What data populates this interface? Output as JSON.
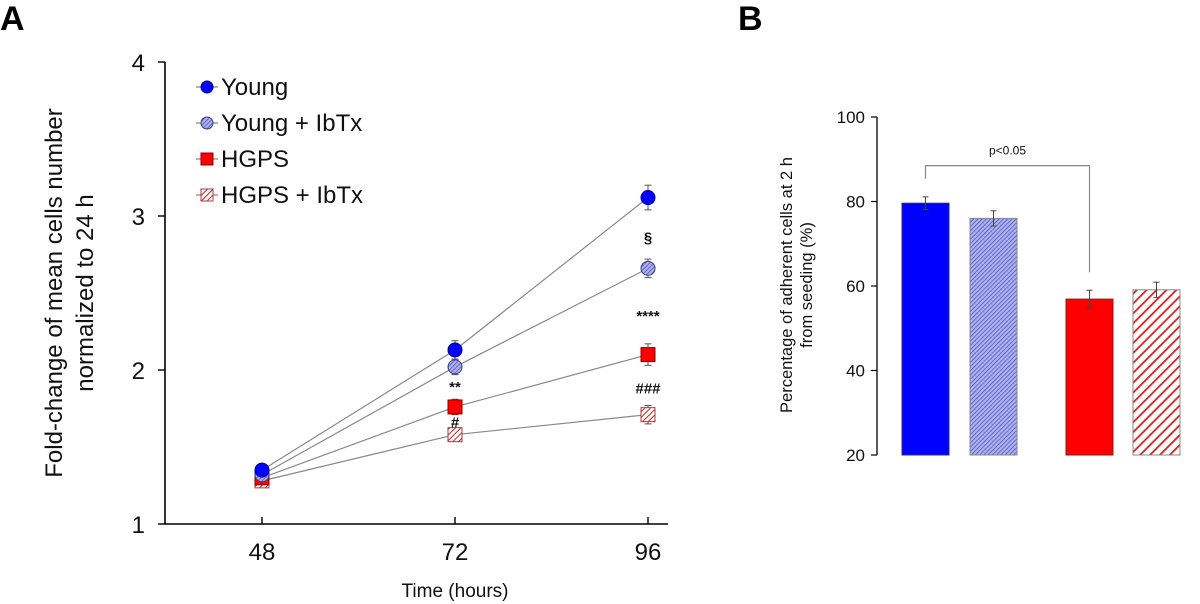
{
  "figure": {
    "panel_labels": [
      "A",
      "B"
    ]
  },
  "chart_data": [
    {
      "type": "line",
      "panel": "A",
      "title": "",
      "xlabel": "Time (hours)",
      "ylabel_lines": [
        "Fold-change of mean cells number",
        "normalized to 24 h"
      ],
      "x": [
        48,
        72,
        96
      ],
      "x_tick_labels": [
        "48",
        "72",
        "96"
      ],
      "ylim": [
        1,
        4
      ],
      "y_ticks": [
        1,
        2,
        3,
        4
      ],
      "y_tick_labels": [
        "1",
        "2",
        "3",
        "4"
      ],
      "grid": false,
      "legend_position": "top-left",
      "series": [
        {
          "name": "Young",
          "marker": "circle",
          "fill": "solid",
          "color": "#0000ff",
          "values": [
            1.35,
            2.13,
            3.12
          ],
          "errors": [
            0.03,
            0.06,
            0.08
          ]
        },
        {
          "name": "Young + IbTx",
          "marker": "circle",
          "fill": "hatched",
          "color": "#8b8fd8",
          "values": [
            1.32,
            2.02,
            2.66
          ],
          "errors": [
            0.03,
            0.05,
            0.06
          ]
        },
        {
          "name": "HGPS",
          "marker": "square",
          "fill": "solid",
          "color": "#ff0000",
          "values": [
            1.3,
            1.76,
            2.1
          ],
          "errors": [
            0.03,
            0.05,
            0.07
          ]
        },
        {
          "name": "HGPS + IbTx",
          "marker": "square",
          "fill": "striped",
          "color": "#e03030",
          "values": [
            1.28,
            1.58,
            1.71
          ],
          "errors": [
            0.03,
            0.04,
            0.06
          ]
        }
      ],
      "annotations": [
        {
          "text": "**",
          "x": 72,
          "y": 1.89
        },
        {
          "text": "#",
          "x": 72,
          "y": 1.66
        },
        {
          "text": "§",
          "x": 96,
          "y": 2.86
        },
        {
          "text": "****",
          "x": 96,
          "y": 2.35
        },
        {
          "text": "###",
          "x": 96,
          "y": 1.88
        }
      ]
    },
    {
      "type": "bar",
      "panel": "B",
      "title": "",
      "xlabel": "",
      "ylabel_lines": [
        "Percentage of adherent cells at 2 h",
        "from seeding (%)"
      ],
      "ylim": [
        20,
        100
      ],
      "y_ticks": [
        20,
        40,
        60,
        80,
        100
      ],
      "y_tick_labels": [
        "20",
        "40",
        "60",
        "80",
        "100"
      ],
      "grid": false,
      "categories": [
        "Young",
        "Young + IbTx",
        "HGPS",
        "HGPS + IbTx"
      ],
      "values": [
        79.6,
        76.0,
        56.9,
        59.1
      ],
      "errors": [
        1.5,
        1.8,
        2.1,
        1.8
      ],
      "colors": [
        "#0000ff",
        "#8b8fd8",
        "#ff0000",
        "#e03030"
      ],
      "fills": [
        "solid",
        "hatched",
        "solid",
        "striped"
      ],
      "significance": {
        "from": 0,
        "to": 2,
        "label": "p<0.05",
        "y": 88.5
      }
    }
  ]
}
